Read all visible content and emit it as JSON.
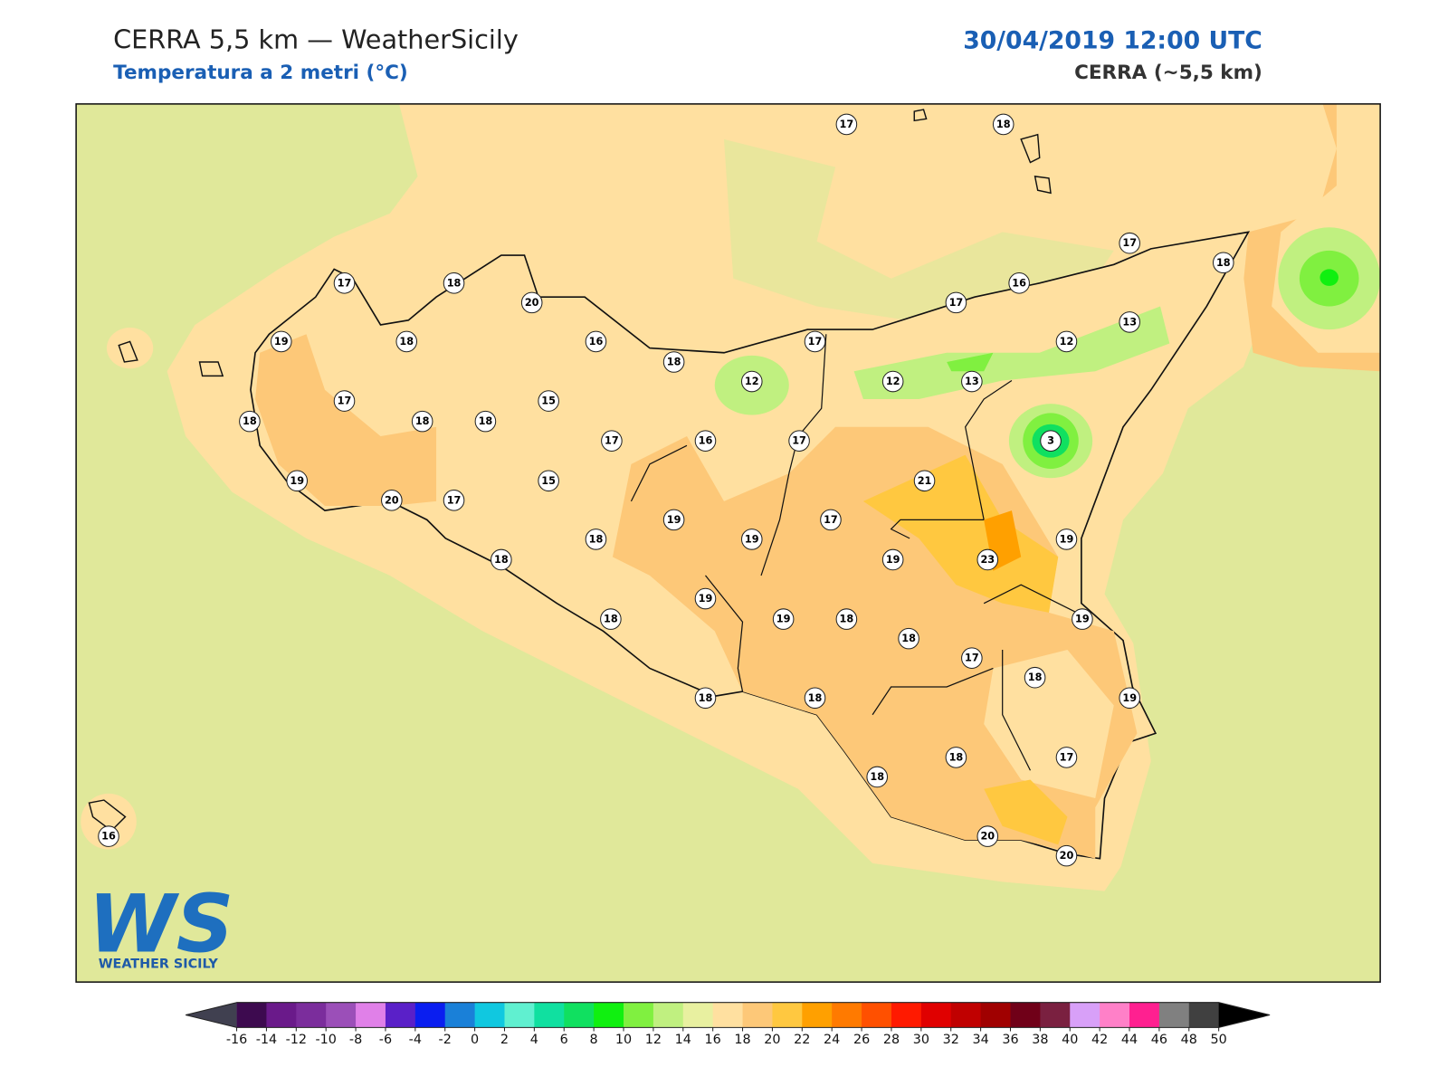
{
  "header": {
    "title": "CERRA 5,5 km — WeatherSicily",
    "subtitle": "Temperatura a 2 metri (°C)",
    "datetime": "30/04/2019 12:00 UTC",
    "model": "CERRA (~5,5 km)"
  },
  "stations": [
    17,
    18,
    17,
    18,
    16,
    17,
    13,
    12,
    17,
    18,
    12,
    12,
    13,
    3,
    16,
    20,
    18,
    17,
    19,
    18,
    17,
    18,
    18,
    18,
    15,
    17,
    16,
    17,
    21,
    15,
    19,
    20,
    17,
    19,
    19,
    17,
    18,
    18,
    19,
    23,
    19,
    19,
    19,
    18,
    18,
    18,
    17,
    19,
    18,
    19,
    18,
    18,
    18,
    18,
    17,
    20,
    20,
    16
  ],
  "colorbar": {
    "ticks": [
      -16,
      -14,
      -12,
      -10,
      -8,
      -6,
      -4,
      -2,
      0,
      2,
      4,
      6,
      8,
      10,
      12,
      14,
      16,
      18,
      20,
      22,
      24,
      26,
      28,
      30,
      32,
      34,
      36,
      38,
      40,
      42,
      44,
      46,
      48,
      50
    ],
    "colors": [
      "#3d0a4f",
      "#6a1a8a",
      "#7b2d9c",
      "#9b4fb8",
      "#e080e8",
      "#5a20c8",
      "#0a1ef0",
      "#1a80d8",
      "#10c8e0",
      "#60f0d0",
      "#10e0a0",
      "#10e060",
      "#10f010",
      "#80f040",
      "#c0f080",
      "#e8f0a0",
      "#ffe0a0",
      "#fdc878",
      "#ffc840",
      "#ffa000",
      "#ff7a00",
      "#ff5000",
      "#ff1a00",
      "#e00000",
      "#c00000",
      "#a00000",
      "#700018",
      "#7a2040",
      "#d8a0f8",
      "#ff80c8",
      "#ff2090",
      "#808080",
      "#404040"
    ],
    "under_color": "#404050",
    "over_color": "#000000"
  },
  "logo": {
    "mark": "WS",
    "text": "WEATHER SICILY"
  }
}
